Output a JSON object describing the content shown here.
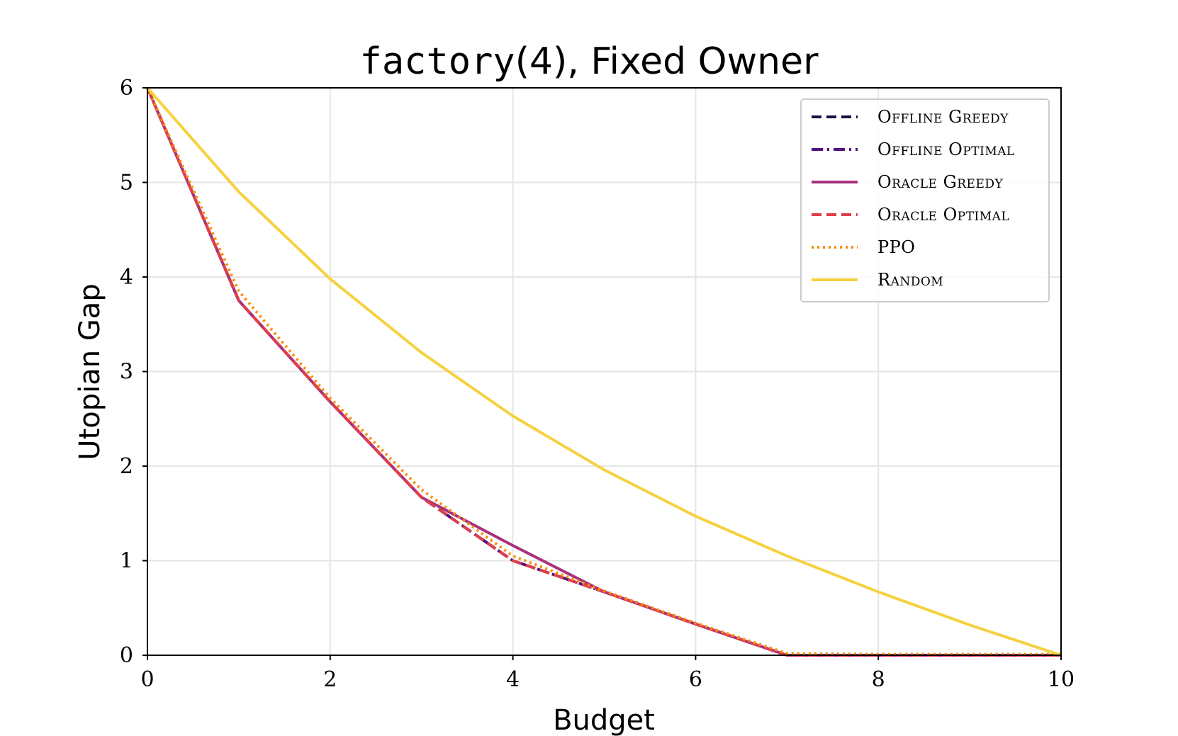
{
  "chart_data": {
    "type": "line",
    "title_code": "factory",
    "title_rest": "(4), Fixed Owner",
    "xlabel": "Budget",
    "ylabel": "Utopian Gap",
    "xlim": [
      0,
      10
    ],
    "ylim": [
      0,
      6
    ],
    "xticks": [
      0,
      2,
      4,
      6,
      8,
      10
    ],
    "yticks": [
      0,
      1,
      2,
      3,
      4,
      5,
      6
    ],
    "grid": true,
    "legend_position": "top-right",
    "x": [
      0,
      1,
      2,
      3,
      4,
      5,
      6,
      7,
      8,
      9,
      10
    ],
    "series": [
      {
        "name": "Offline Greedy",
        "color": "#1b1044",
        "style": "dashed",
        "values": [
          6,
          3.75,
          2.68,
          1.67,
          1.0,
          0.67,
          0.33,
          0,
          0,
          0,
          0
        ]
      },
      {
        "name": "Offline Optimal",
        "color": "#51127c",
        "style": "dashdot",
        "values": [
          6,
          3.75,
          2.68,
          1.67,
          1.0,
          0.67,
          0.33,
          0,
          0,
          0,
          0
        ]
      },
      {
        "name": "Oracle Greedy",
        "color": "#a8327d",
        "style": "solid",
        "values": [
          6,
          3.75,
          2.68,
          1.67,
          1.16,
          0.67,
          0.33,
          0,
          0,
          0,
          0
        ]
      },
      {
        "name": "Oracle Optimal",
        "color": "#e03e4c",
        "style": "dashed",
        "values": [
          6,
          3.75,
          2.68,
          1.67,
          1.0,
          0.67,
          0.33,
          0,
          0,
          0,
          0
        ]
      },
      {
        "name": "PPO",
        "color": "#f98e09",
        "style": "dotted",
        "values": [
          6,
          3.85,
          2.72,
          1.75,
          1.05,
          0.68,
          0.34,
          0.02,
          0.01,
          0.01,
          0.01
        ]
      },
      {
        "name": "Random",
        "color": "#f6d13f",
        "style": "solid",
        "values": [
          6,
          4.9,
          3.98,
          3.2,
          2.53,
          1.96,
          1.47,
          1.05,
          0.67,
          0.32,
          0
        ]
      }
    ]
  }
}
